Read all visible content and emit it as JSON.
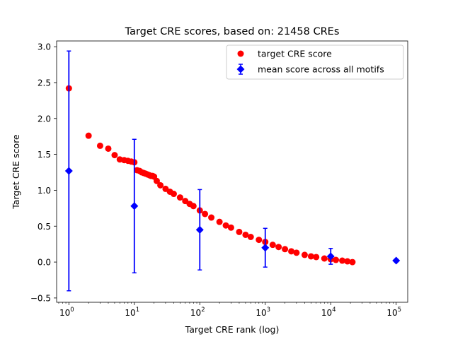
{
  "chart_data": {
    "type": "scatter",
    "title": "Target CRE scores, based on: 21458 CREs",
    "xlabel": "Target CRE rank (log)",
    "ylabel": "Target CRE score",
    "xscale": "log",
    "xlim": [
      0.65,
      150000
    ],
    "ylim": [
      -0.56,
      3.08
    ],
    "x_ticks": [
      {
        "value": 1,
        "base": "10",
        "exp": "0"
      },
      {
        "value": 10,
        "base": "10",
        "exp": "1"
      },
      {
        "value": 100,
        "base": "10",
        "exp": "2"
      },
      {
        "value": 1000,
        "base": "10",
        "exp": "3"
      },
      {
        "value": 10000,
        "base": "10",
        "exp": "4"
      },
      {
        "value": 100000,
        "base": "10",
        "exp": "5"
      }
    ],
    "y_ticks": [
      -0.5,
      0.0,
      0.5,
      1.0,
      1.5,
      2.0,
      2.5,
      3.0
    ],
    "y_tick_labels": [
      "−0.5",
      "0.0",
      "0.5",
      "1.0",
      "1.5",
      "2.0",
      "2.5",
      "3.0"
    ],
    "legend_position": "top-right",
    "series": [
      {
        "name": "target CRE score",
        "color": "#ff0000",
        "marker": "circle",
        "x": [
          1,
          2,
          3,
          4,
          5,
          6,
          7,
          8,
          9,
          10,
          11,
          12,
          13,
          14,
          15,
          16,
          17,
          18,
          19,
          20,
          22,
          25,
          30,
          35,
          40,
          50,
          60,
          70,
          80,
          100,
          120,
          150,
          200,
          250,
          300,
          400,
          500,
          600,
          800,
          1000,
          1300,
          1600,
          2000,
          2500,
          3000,
          4000,
          5000,
          6000,
          8000,
          10000,
          12000,
          15000,
          18000,
          21458
        ],
        "y": [
          2.42,
          1.76,
          1.62,
          1.58,
          1.49,
          1.43,
          1.42,
          1.41,
          1.4,
          1.39,
          1.28,
          1.27,
          1.25,
          1.24,
          1.23,
          1.22,
          1.21,
          1.2,
          1.2,
          1.19,
          1.13,
          1.07,
          1.02,
          0.98,
          0.95,
          0.9,
          0.85,
          0.81,
          0.78,
          0.72,
          0.67,
          0.62,
          0.56,
          0.51,
          0.48,
          0.42,
          0.38,
          0.35,
          0.31,
          0.28,
          0.24,
          0.21,
          0.18,
          0.15,
          0.13,
          0.1,
          0.08,
          0.07,
          0.05,
          0.04,
          0.03,
          0.02,
          0.01,
          0.0
        ]
      },
      {
        "name": "mean score across all motifs",
        "color": "#0000ff",
        "marker": "diamond",
        "x": [
          1,
          10,
          100,
          1000,
          10000,
          100000
        ],
        "y": [
          1.27,
          0.78,
          0.45,
          0.2,
          0.08,
          0.02
        ],
        "yerr": [
          1.67,
          0.93,
          0.56,
          0.27,
          0.11,
          0.0
        ]
      }
    ]
  }
}
